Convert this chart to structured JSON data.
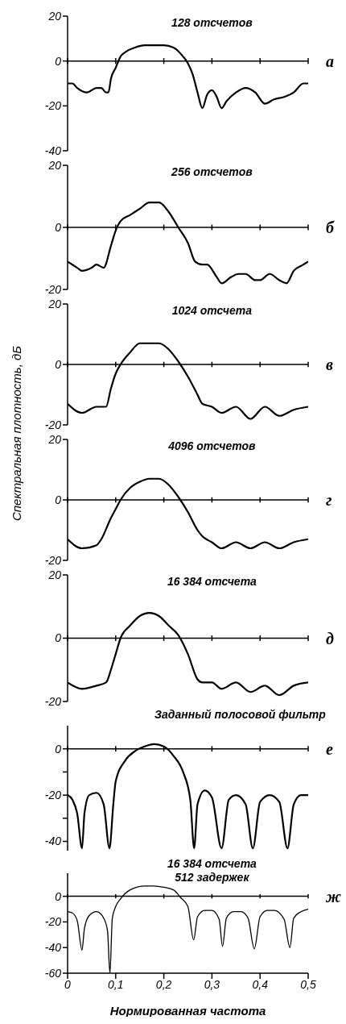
{
  "chart_data": [
    {
      "type": "line",
      "title": "128 отсчетов",
      "annotations": [
        "а"
      ],
      "xlim": [
        0,
        0.5
      ],
      "xticks": [
        0,
        0.1,
        0.2,
        0.3,
        0.4,
        0.5
      ],
      "ylim": [
        -40,
        20
      ],
      "yticks": [
        -40,
        -20,
        0,
        20
      ],
      "tick_labels": "y",
      "ref_lines": [
        {
          "axis": "y",
          "value": 0
        }
      ],
      "series": [
        {
          "color": "#000000",
          "x": [
            0,
            0.01,
            0.02,
            0.04,
            0.06,
            0.07,
            0.08,
            0.085,
            0.09,
            0.1,
            0.11,
            0.12,
            0.14,
            0.16,
            0.18,
            0.2,
            0.22,
            0.24,
            0.25,
            0.26,
            0.27,
            0.28,
            0.29,
            0.3,
            0.31,
            0.32,
            0.33,
            0.35,
            0.37,
            0.39,
            0.41,
            0.43,
            0.45,
            0.47,
            0.49,
            0.5
          ],
          "values": [
            -10,
            -10,
            -12,
            -14,
            -12,
            -12,
            -14,
            -14,
            -8,
            -3,
            2,
            4,
            6,
            7,
            7,
            7,
            6,
            2,
            -1,
            -6,
            -14,
            -21,
            -15,
            -13,
            -16,
            -21,
            -18,
            -14,
            -12,
            -14,
            -19,
            -17,
            -16,
            -14,
            -10,
            -10
          ]
        }
      ]
    },
    {
      "type": "line",
      "title": "256 отсчетов",
      "annotations": [
        "б"
      ],
      "xlim": [
        0,
        0.5
      ],
      "xticks": [
        0,
        0.1,
        0.2,
        0.3,
        0.4,
        0.5
      ],
      "ylim": [
        -20,
        20
      ],
      "yticks": [
        -20,
        0,
        20
      ],
      "tick_labels": "y",
      "ref_lines": [
        {
          "axis": "y",
          "value": 0
        }
      ],
      "series": [
        {
          "color": "#000000",
          "x": [
            0,
            0.02,
            0.03,
            0.05,
            0.06,
            0.075,
            0.09,
            0.1,
            0.11,
            0.13,
            0.15,
            0.17,
            0.18,
            0.19,
            0.21,
            0.23,
            0.25,
            0.265,
            0.28,
            0.29,
            0.31,
            0.32,
            0.34,
            0.355,
            0.37,
            0.39,
            0.4,
            0.42,
            0.44,
            0.455,
            0.47,
            0.49,
            0.5
          ],
          "values": [
            -11,
            -13,
            -14,
            -13,
            -12,
            -13,
            -6,
            -1,
            2,
            4,
            6,
            8,
            8,
            8,
            5,
            0,
            -5,
            -11,
            -12,
            -12,
            -16,
            -18,
            -16,
            -15,
            -15,
            -17,
            -17,
            -15,
            -17,
            -18,
            -14,
            -12,
            -11
          ]
        }
      ]
    },
    {
      "type": "line",
      "title": "1024 отсчета",
      "ylabel": "Спектральная плотность, дБ",
      "annotations": [
        "в"
      ],
      "xlim": [
        0,
        0.5
      ],
      "xticks": [
        0,
        0.1,
        0.2,
        0.3,
        0.4,
        0.5
      ],
      "ylim": [
        -20,
        20
      ],
      "yticks": [
        -20,
        0,
        20
      ],
      "tick_labels": "y",
      "ref_lines": [
        {
          "axis": "y",
          "value": 0
        }
      ],
      "series": [
        {
          "color": "#000000",
          "x": [
            0,
            0.03,
            0.06,
            0.08,
            0.09,
            0.1,
            0.11,
            0.13,
            0.15,
            0.17,
            0.19,
            0.21,
            0.23,
            0.25,
            0.27,
            0.28,
            0.3,
            0.32,
            0.35,
            0.38,
            0.41,
            0.44,
            0.47,
            0.5
          ],
          "values": [
            -13,
            -16,
            -14,
            -14,
            -8,
            -3,
            0,
            4,
            7,
            7,
            7,
            5,
            1,
            -4,
            -10,
            -13,
            -14,
            -16,
            -14,
            -18,
            -14,
            -17,
            -15,
            -14
          ]
        }
      ]
    },
    {
      "type": "line",
      "title": "4096 отсчетов",
      "annotations": [
        "г"
      ],
      "xlim": [
        0,
        0.5
      ],
      "xticks": [
        0,
        0.1,
        0.2,
        0.3,
        0.4,
        0.5
      ],
      "ylim": [
        -20,
        20
      ],
      "yticks": [
        -20,
        0,
        20
      ],
      "tick_labels": "y",
      "ref_lines": [
        {
          "axis": "y",
          "value": 0
        }
      ],
      "series": [
        {
          "color": "#000000",
          "x": [
            0,
            0.03,
            0.06,
            0.07,
            0.09,
            0.1,
            0.11,
            0.13,
            0.15,
            0.17,
            0.19,
            0.21,
            0.23,
            0.25,
            0.27,
            0.28,
            0.3,
            0.32,
            0.35,
            0.38,
            0.41,
            0.44,
            0.47,
            0.5
          ],
          "values": [
            -13,
            -16,
            -15,
            -13,
            -6,
            -3,
            0,
            4,
            6,
            7,
            7,
            5,
            1,
            -4,
            -10,
            -12,
            -14,
            -16,
            -14,
            -16,
            -14,
            -16,
            -14,
            -13
          ]
        }
      ]
    },
    {
      "type": "line",
      "title": "16 384 отсчета",
      "annotations": [
        "д"
      ],
      "xlim": [
        0,
        0.5
      ],
      "xticks": [
        0,
        0.1,
        0.2,
        0.3,
        0.4,
        0.5
      ],
      "ylim": [
        -20,
        20
      ],
      "yticks": [
        -20,
        0,
        20
      ],
      "tick_labels": "y",
      "ref_lines": [
        {
          "axis": "y",
          "value": 0
        }
      ],
      "series": [
        {
          "color": "#000000",
          "x": [
            0,
            0.03,
            0.06,
            0.08,
            0.09,
            0.1,
            0.11,
            0.13,
            0.15,
            0.17,
            0.19,
            0.21,
            0.23,
            0.25,
            0.27,
            0.28,
            0.3,
            0.32,
            0.35,
            0.38,
            0.41,
            0.44,
            0.47,
            0.5
          ],
          "values": [
            -14,
            -16,
            -15,
            -14,
            -10,
            -5,
            0,
            4,
            7,
            8,
            7,
            4,
            1,
            -5,
            -13,
            -14,
            -14,
            -16,
            -14,
            -17,
            -15,
            -18,
            -15,
            -14
          ]
        }
      ]
    },
    {
      "type": "line",
      "title": "Заданный полосовой фильтр",
      "annotations": [
        "е"
      ],
      "xlim": [
        0,
        0.5
      ],
      "xticks": [
        0,
        0.1,
        0.2,
        0.3,
        0.4,
        0.5
      ],
      "ylim": [
        -44,
        10
      ],
      "yticks": [
        {
          "value": -40,
          "label": "-40"
        },
        {
          "value": -30,
          "label": null
        },
        {
          "value": -20,
          "label": "-20"
        },
        {
          "value": -10,
          "label": null
        },
        0
      ],
      "tick_labels": "y",
      "ref_lines": [
        {
          "axis": "y",
          "value": 0
        }
      ],
      "series": [
        {
          "color": "#000000",
          "x": [
            0,
            0.01,
            0.02,
            0.03,
            0.035,
            0.045,
            0.06,
            0.075,
            0.087,
            0.095,
            0.1,
            0.12,
            0.14,
            0.16,
            0.18,
            0.2,
            0.22,
            0.24,
            0.255,
            0.263,
            0.27,
            0.285,
            0.3,
            0.32,
            0.335,
            0.35,
            0.37,
            0.385,
            0.4,
            0.42,
            0.44,
            0.457,
            0.47,
            0.485,
            0.5
          ],
          "values": [
            -20,
            -22,
            -28,
            -43,
            -28,
            -20,
            -19,
            -24,
            -43,
            -24,
            -14,
            -5,
            -1,
            1,
            2,
            1,
            -3,
            -10,
            -22,
            -43,
            -24,
            -18,
            -21,
            -43,
            -22,
            -20,
            -24,
            -43,
            -23,
            -20,
            -23,
            -43,
            -24,
            -20,
            -20
          ]
        }
      ]
    },
    {
      "type": "line",
      "title": "16 384 отсчета",
      "subtitle": "512 задержек",
      "xlabel": "Нормированная частота",
      "annotations": [
        "ж"
      ],
      "xlim": [
        0,
        0.5
      ],
      "xticks": [
        0,
        {
          "value": 0.1,
          "label": "0,1"
        },
        {
          "value": 0.2,
          "label": "0,2"
        },
        {
          "value": 0.3,
          "label": "0,3"
        },
        {
          "value": 0.4,
          "label": "0,4"
        },
        {
          "value": 0.5,
          "label": "0,5"
        }
      ],
      "ylim": [
        -60,
        18
      ],
      "yticks": [
        {
          "value": -60,
          "label": "-60"
        },
        {
          "value": -40,
          "label": "-40"
        },
        {
          "value": -20,
          "label": "-20"
        },
        0
      ],
      "ref_lines": [
        {
          "axis": "y",
          "value": 0
        }
      ],
      "series": [
        {
          "color": "#000000",
          "x": [
            0,
            0.01,
            0.02,
            0.03,
            0.035,
            0.045,
            0.06,
            0.075,
            0.083,
            0.088,
            0.093,
            0.1,
            0.11,
            0.13,
            0.16,
            0.18,
            0.2,
            0.22,
            0.235,
            0.25,
            0.262,
            0.27,
            0.285,
            0.3,
            0.315,
            0.322,
            0.33,
            0.345,
            0.36,
            0.375,
            0.388,
            0.4,
            0.415,
            0.43,
            0.45,
            0.462,
            0.47,
            0.485,
            0.5
          ],
          "values": [
            -12,
            -13,
            -19,
            -42,
            -25,
            -15,
            -12,
            -17,
            -27,
            -60,
            -17,
            -8,
            -2,
            5,
            8,
            8,
            7,
            5,
            -1,
            -8,
            -34,
            -16,
            -11,
            -11,
            -18,
            -39,
            -17,
            -12,
            -12,
            -17,
            -41,
            -16,
            -11,
            -11,
            -18,
            -40,
            -17,
            -12,
            -10
          ]
        }
      ]
    }
  ]
}
